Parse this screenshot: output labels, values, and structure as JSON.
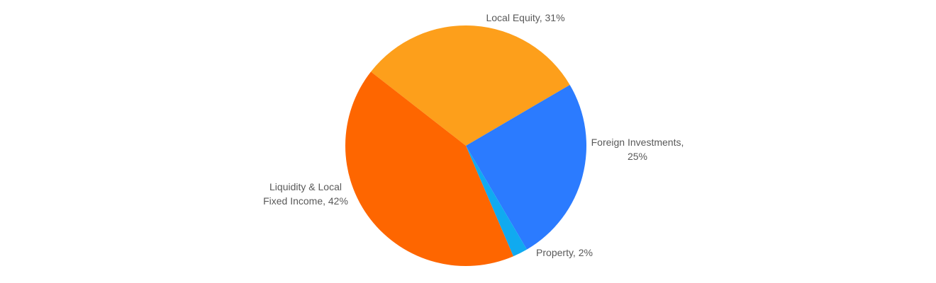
{
  "chart_data": {
    "type": "pie",
    "labels": [
      [
        "Local Equity, 31%"
      ],
      [
        "Foreign Investments,",
        "25%"
      ],
      [
        "Property, 2%"
      ],
      [
        "Liquidity & Local",
        "Fixed Income, 42%"
      ]
    ],
    "values": [
      31,
      25,
      2,
      42
    ],
    "colors": [
      "#fd9f1b",
      "#2b7bff",
      "#10aaf0",
      "#fe6600"
    ]
  }
}
